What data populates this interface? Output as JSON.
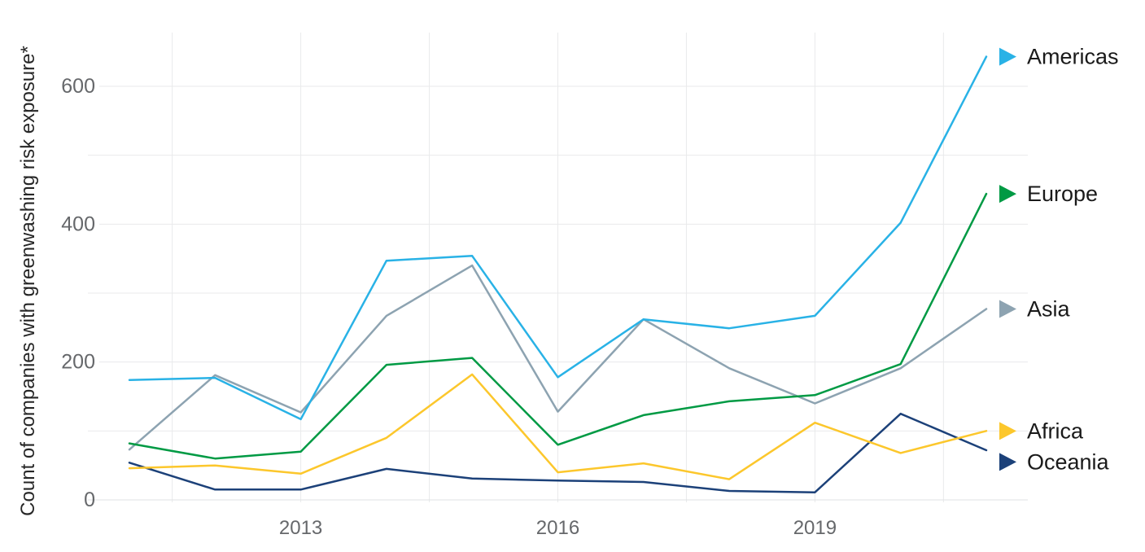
{
  "chart_data": {
    "type": "line",
    "title": "",
    "ylabel": "Count of companies with greenwashing risk exposure*",
    "xlabel": "",
    "x": [
      2011,
      2012,
      2013,
      2014,
      2015,
      2016,
      2017,
      2018,
      2019,
      2020,
      2021
    ],
    "x_tick_labels": [
      "2013",
      "2016",
      "2019"
    ],
    "x_tick_years": [
      2013,
      2016,
      2019
    ],
    "x_gridline_years": [
      2011.5,
      2013,
      2014.5,
      2016,
      2017.5,
      2019,
      2020.5
    ],
    "y_ticks": [
      0,
      200,
      400,
      600
    ],
    "y_tick_labels": [
      "0",
      "200",
      "400",
      "600"
    ],
    "y_gridline_values": [
      0,
      100,
      200,
      300,
      400,
      500,
      600
    ],
    "ylim": [
      0,
      680
    ],
    "xlim": [
      2010.5,
      2021.5
    ],
    "grid": true,
    "legend_position": "right-of-line-ends",
    "series": [
      {
        "name": "Americas",
        "color": "#29b2e6",
        "values": [
          174,
          177,
          117,
          347,
          354,
          178,
          262,
          249,
          267,
          402,
          643
        ]
      },
      {
        "name": "Europe",
        "color": "#009a44",
        "values": [
          82,
          60,
          70,
          196,
          206,
          80,
          123,
          143,
          152,
          197,
          444
        ]
      },
      {
        "name": "Asia",
        "color": "#8da3b1",
        "values": [
          73,
          181,
          127,
          267,
          340,
          128,
          262,
          191,
          140,
          191,
          277
        ]
      },
      {
        "name": "Africa",
        "color": "#fcc72c",
        "values": [
          46,
          50,
          38,
          90,
          182,
          40,
          53,
          30,
          112,
          68,
          100
        ]
      },
      {
        "name": "Oceania",
        "color": "#1c4179",
        "values": [
          54,
          15,
          15,
          45,
          31,
          28,
          26,
          13,
          11,
          125,
          72
        ]
      }
    ]
  },
  "colors": {
    "background": "#ffffff",
    "gridline": "#e9eaeb",
    "baseline": "#dfe1e3",
    "axis_tick_text": "#66686b",
    "axis_title_text": "#262626",
    "legend_text": "#1a1a1a"
  }
}
